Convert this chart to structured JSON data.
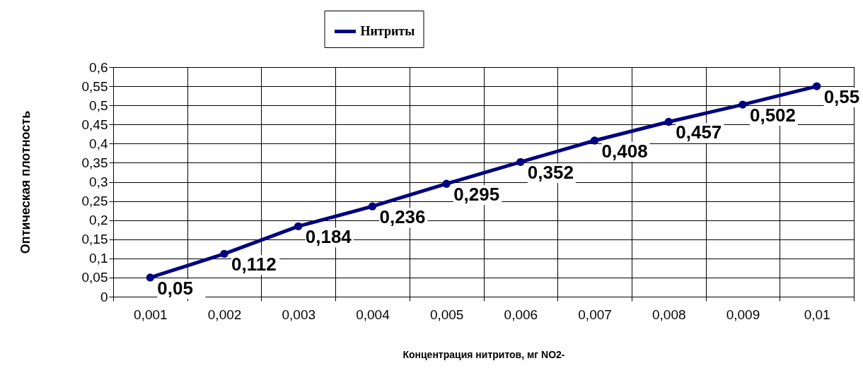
{
  "chart_data": {
    "type": "line",
    "xlabel": "Концентрация нитритов, мг NO2-",
    "ylabel": "Оптическая плотность",
    "categories": [
      "0,001",
      "0,002",
      "0,003",
      "0,004",
      "0,005",
      "0,006",
      "0,007",
      "0,008",
      "0,009",
      "0,01"
    ],
    "series": [
      {
        "name": "Нитриты",
        "color": "#000080",
        "values": [
          0.05,
          0.112,
          0.184,
          0.236,
          0.295,
          0.352,
          0.408,
          0.457,
          0.502,
          0.55
        ],
        "value_labels": [
          "0,05",
          "0,112",
          "0,184",
          "0,236",
          "0,295",
          "0,352",
          "0,408",
          "0,457",
          "0,502",
          "0,55"
        ]
      }
    ],
    "ylim": [
      0,
      0.6
    ],
    "yticks": [
      {
        "value": 0,
        "label": "0"
      },
      {
        "value": 0.05,
        "label": "0,05"
      },
      {
        "value": 0.1,
        "label": "0,1"
      },
      {
        "value": 0.15,
        "label": "0,15"
      },
      {
        "value": 0.2,
        "label": "0,2"
      },
      {
        "value": 0.25,
        "label": "0,25"
      },
      {
        "value": 0.3,
        "label": "0,3"
      },
      {
        "value": 0.35,
        "label": "0,35"
      },
      {
        "value": 0.4,
        "label": "0,4"
      },
      {
        "value": 0.45,
        "label": "0,45"
      },
      {
        "value": 0.5,
        "label": "0,5"
      },
      {
        "value": 0.55,
        "label": "0,55"
      },
      {
        "value": 0.6,
        "label": "0,6"
      }
    ],
    "grid": true,
    "legend": "top",
    "marker": "circle",
    "line_style": "solid"
  }
}
